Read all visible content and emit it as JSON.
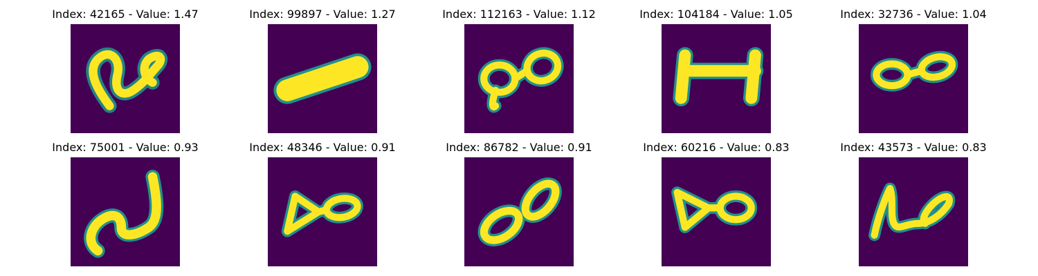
{
  "colors": {
    "background": "#440154",
    "edge": "#21918c",
    "stroke": "#fde725"
  },
  "panels": [
    {
      "title": "Index: 42165 - Value: 1.47",
      "glyph": "curved-two-shape"
    },
    {
      "title": "Index: 99897 - Value: 1.27",
      "glyph": "thick-bar-shape"
    },
    {
      "title": "Index: 112163 - Value: 1.12",
      "glyph": "eight-loops-shape"
    },
    {
      "title": "Index: 104184 - Value: 1.05",
      "glyph": "i-beam-shape"
    },
    {
      "title": "Index: 32736 - Value: 1.04",
      "glyph": "eight-loops-shape"
    },
    {
      "title": "Index: 75001 - Value: 0.93",
      "glyph": "s-curve-shape"
    },
    {
      "title": "Index: 48346 - Value: 0.91",
      "glyph": "eight-loops-shape"
    },
    {
      "title": "Index: 86782 - Value: 0.91",
      "glyph": "eight-loops-shape"
    },
    {
      "title": "Index: 60216 - Value: 0.83",
      "glyph": "eight-loops-shape"
    },
    {
      "title": "Index: 43573 - Value: 0.83",
      "glyph": "slanted-loop-shape"
    }
  ]
}
